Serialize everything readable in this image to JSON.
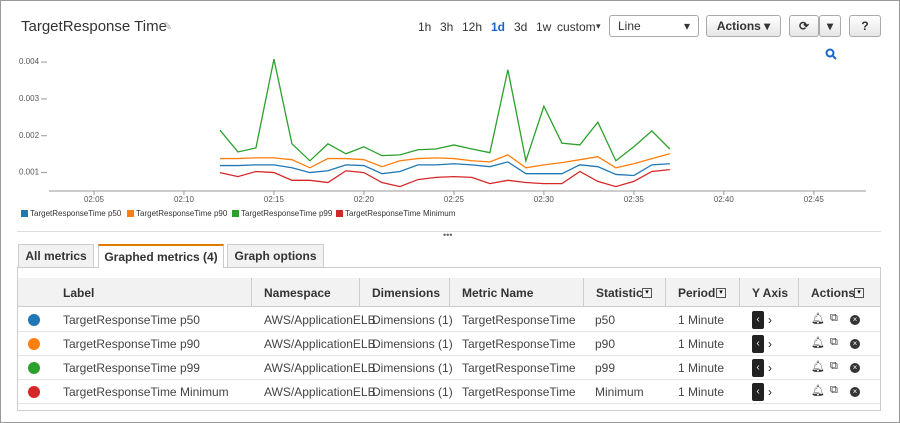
{
  "header": {
    "title": "TargetResponse Time",
    "time_ranges": [
      "1h",
      "3h",
      "12h",
      "1d",
      "3d",
      "1w",
      "custom"
    ],
    "selected_range": "1d",
    "view": "Line",
    "actions": "Actions"
  },
  "chart_data": {
    "type": "line",
    "x": [
      132,
      133,
      134,
      135,
      136,
      137,
      138,
      139,
      140,
      141,
      142,
      143,
      144,
      145,
      146,
      147,
      148,
      149,
      150,
      151,
      152,
      153,
      154,
      155,
      156,
      157
    ],
    "xlim": [
      122.5,
      167.9
    ],
    "xticks": [
      {
        "value": 125,
        "label": "02:05"
      },
      {
        "value": 130,
        "label": "02:10"
      },
      {
        "value": 135,
        "label": "02:15"
      },
      {
        "value": 140,
        "label": "02:20"
      },
      {
        "value": 145,
        "label": "02:25"
      },
      {
        "value": 150,
        "label": "02:30"
      },
      {
        "value": 155,
        "label": "02:35"
      },
      {
        "value": 160,
        "label": "02:40"
      },
      {
        "value": 165,
        "label": "02:45"
      }
    ],
    "ylim": [
      0.0005,
      0.0043
    ],
    "yticks": [
      0.001,
      0.002,
      0.003,
      0.004
    ],
    "series": [
      {
        "name": "TargetResponseTime p50",
        "color": "#1f77b4",
        "values": [
          0.00119,
          0.00119,
          0.00121,
          0.00121,
          0.00113,
          0.001,
          0.00105,
          0.00121,
          0.00119,
          0.00097,
          0.00103,
          0.00121,
          0.00121,
          0.00124,
          0.00121,
          0.00116,
          0.00129,
          0.00097,
          0.00097,
          0.00097,
          0.00121,
          0.00116,
          0.00095,
          0.00092,
          0.00121,
          0.00124
        ]
      },
      {
        "name": "TargetResponseTime p90",
        "color": "#ff7f0e",
        "values": [
          0.00138,
          0.00138,
          0.0014,
          0.0014,
          0.00135,
          0.00113,
          0.00138,
          0.00138,
          0.00135,
          0.00116,
          0.00132,
          0.00138,
          0.0014,
          0.00138,
          0.00132,
          0.00129,
          0.00148,
          0.00113,
          0.00121,
          0.00127,
          0.00135,
          0.00143,
          0.00113,
          0.00124,
          0.00138,
          0.00151
        ]
      },
      {
        "name": "TargetResponseTime p99",
        "color": "#2ca02c",
        "values": [
          0.00215,
          0.00156,
          0.00167,
          0.00408,
          0.00178,
          0.00132,
          0.00178,
          0.00151,
          0.0017,
          0.00146,
          0.00148,
          0.00162,
          0.00164,
          0.00175,
          0.00164,
          0.00154,
          0.00379,
          0.00132,
          0.0028,
          0.0018,
          0.00175,
          0.00237,
          0.00132,
          0.0017,
          0.00213,
          0.00164
        ]
      },
      {
        "name": "TargetResponseTime Minimum",
        "color": "#d62728",
        "values": [
          0.001,
          0.00089,
          0.00103,
          0.001,
          0.00079,
          0.00079,
          0.00073,
          0.00105,
          0.001,
          0.00073,
          0.00062,
          0.00081,
          0.00087,
          0.00089,
          0.00087,
          0.0007,
          0.00079,
          0.00073,
          0.0007,
          0.0007,
          0.00103,
          0.00076,
          0.00062,
          0.00076,
          0.00103,
          0.00108
        ]
      }
    ]
  },
  "tabs": [
    "All metrics",
    "Graphed metrics (4)",
    "Graph options"
  ],
  "table": {
    "headers": [
      "Label",
      "Namespace",
      "Dimensions",
      "Metric Name",
      "Statistic",
      "Period",
      "Y Axis",
      "Actions"
    ],
    "rows": [
      [
        "TargetResponseTime p50",
        "AWS/ApplicationELB",
        "Dimensions (1)",
        "TargetResponseTime",
        "p50",
        "1 Minute"
      ],
      [
        "TargetResponseTime p90",
        "AWS/ApplicationELB",
        "Dimensions (1)",
        "TargetResponseTime",
        "p90",
        "1 Minute"
      ],
      [
        "TargetResponseTime p99",
        "AWS/ApplicationELB",
        "Dimensions (1)",
        "TargetResponseTime",
        "p99",
        "1 Minute"
      ],
      [
        "TargetResponseTime Minimum",
        "AWS/ApplicationELB",
        "Dimensions (1)",
        "TargetResponseTime",
        "Minimum",
        "1 Minute"
      ]
    ]
  }
}
